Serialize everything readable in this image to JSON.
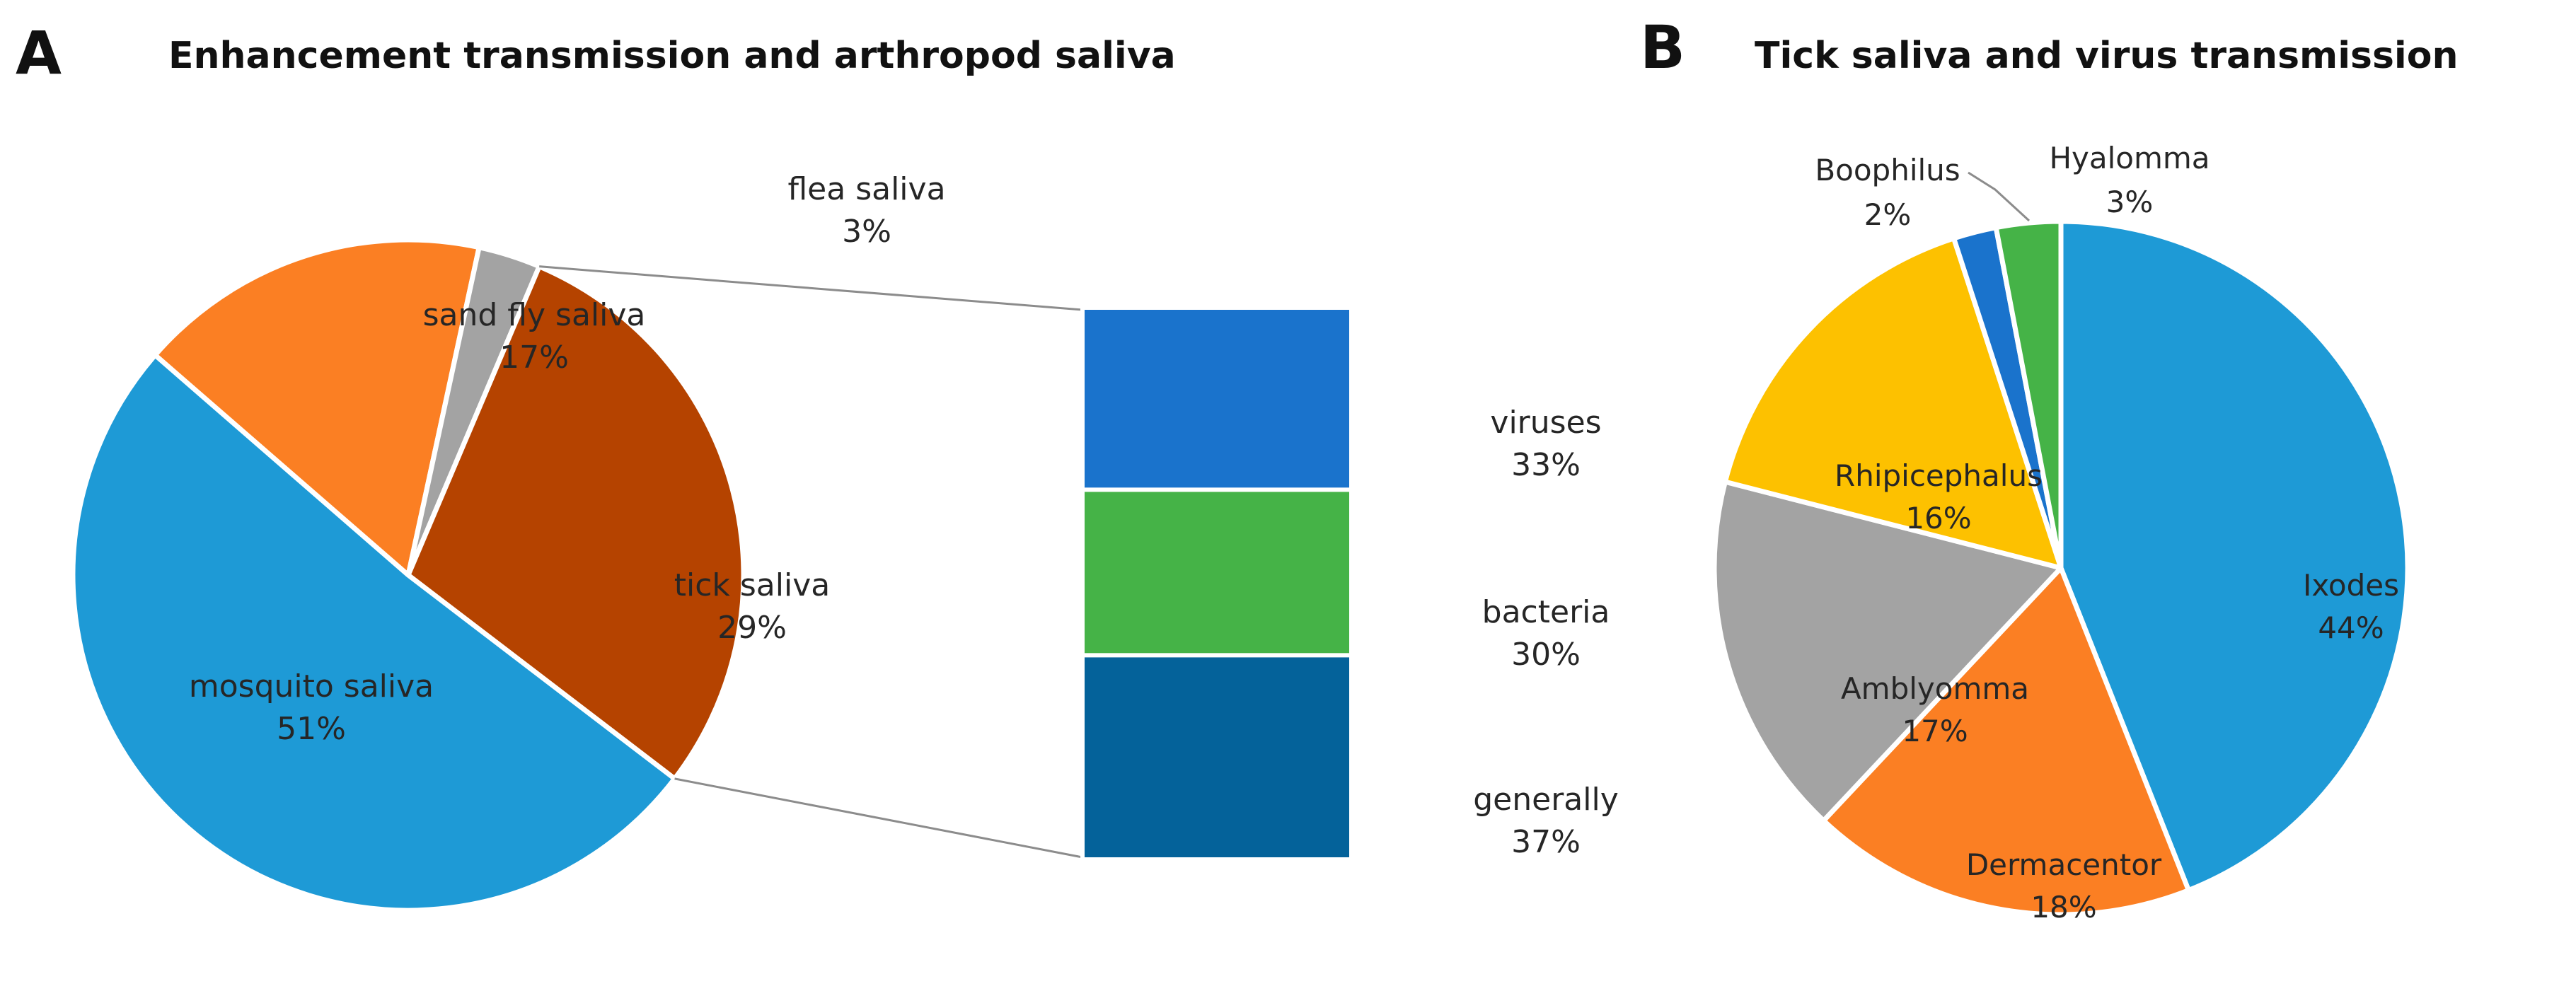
{
  "chart_data": [
    {
      "panel": "A",
      "type": "pie",
      "title": "Enhancement transmission and arthropod saliva",
      "slices": [
        {
          "name": "mosquito saliva",
          "value": 51,
          "label": "51%",
          "color": "#1e9ad6"
        },
        {
          "name": "sand fly saliva",
          "value": 17,
          "label": "17%",
          "color": "#fb7f23"
        },
        {
          "name": "flea saliva",
          "value": 3,
          "label": "3%",
          "color": "#a3a3a3"
        },
        {
          "name": "tick saliva",
          "value": 29,
          "label": "29%",
          "color": "#b54300"
        }
      ],
      "breakdown_of": "tick saliva",
      "breakdown": {
        "type": "stacked-bar",
        "segments": [
          {
            "name": "viruses",
            "value": 33,
            "label": "33%",
            "color": "#1a73cc"
          },
          {
            "name": "bacteria",
            "value": 30,
            "label": "30%",
            "color": "#45b347"
          },
          {
            "name": "generally",
            "value": 37,
            "label": "37%",
            "color": "#04629a"
          }
        ]
      }
    },
    {
      "panel": "B",
      "type": "pie",
      "title": "Tick saliva and virus transmission",
      "slices": [
        {
          "name": "Ixodes",
          "value": 44,
          "label": "44%",
          "color": "#1e9ad6"
        },
        {
          "name": "Dermacentor",
          "value": 18,
          "label": "18%",
          "color": "#fb7f23"
        },
        {
          "name": "Amblyomma",
          "value": 17,
          "label": "17%",
          "color": "#a3a3a3"
        },
        {
          "name": "Rhipicephalus",
          "value": 16,
          "label": "16%",
          "color": "#fdc100"
        },
        {
          "name": "Boophilus",
          "value": 2,
          "label": "2%",
          "color": "#1a73cc"
        },
        {
          "name": "Hyalomma",
          "value": 3,
          "label": "3%",
          "color": "#45b347"
        }
      ]
    }
  ]
}
